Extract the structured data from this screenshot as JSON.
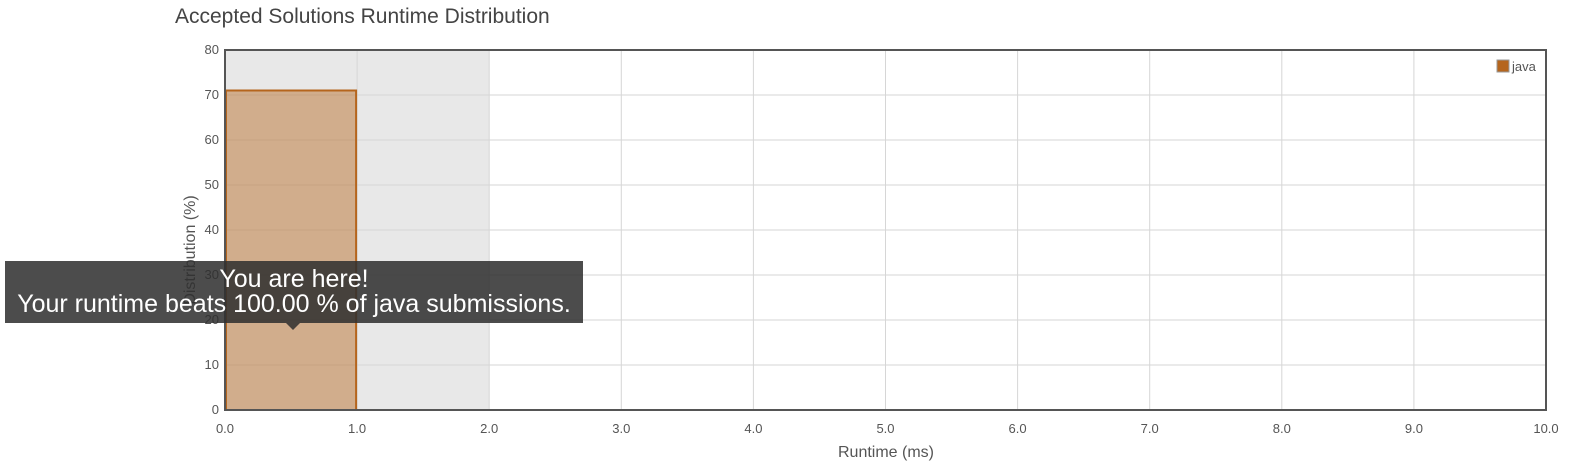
{
  "chart_data": {
    "type": "bar",
    "title": "Accepted Solutions Runtime Distribution",
    "xlabel": "Runtime (ms)",
    "ylabel": "Distribution (%)",
    "xlim": [
      0,
      10
    ],
    "ylim": [
      0,
      80
    ],
    "x_ticks": [
      "0.0",
      "1.0",
      "2.0",
      "3.0",
      "4.0",
      "5.0",
      "6.0",
      "7.0",
      "8.0",
      "9.0",
      "10.0"
    ],
    "y_ticks": [
      "0",
      "10",
      "20",
      "30",
      "40",
      "50",
      "60",
      "70",
      "80"
    ],
    "grid": true,
    "legend_position": "top-right",
    "highlight_range": [
      0,
      2
    ],
    "series": [
      {
        "name": "java",
        "color": "#b5651d",
        "bars": [
          {
            "x0": 0,
            "x1": 1,
            "value": 71
          }
        ]
      }
    ]
  },
  "tooltip": {
    "line1": "You are here!",
    "line2": "Your runtime beats 100.00 % of java submissions."
  }
}
